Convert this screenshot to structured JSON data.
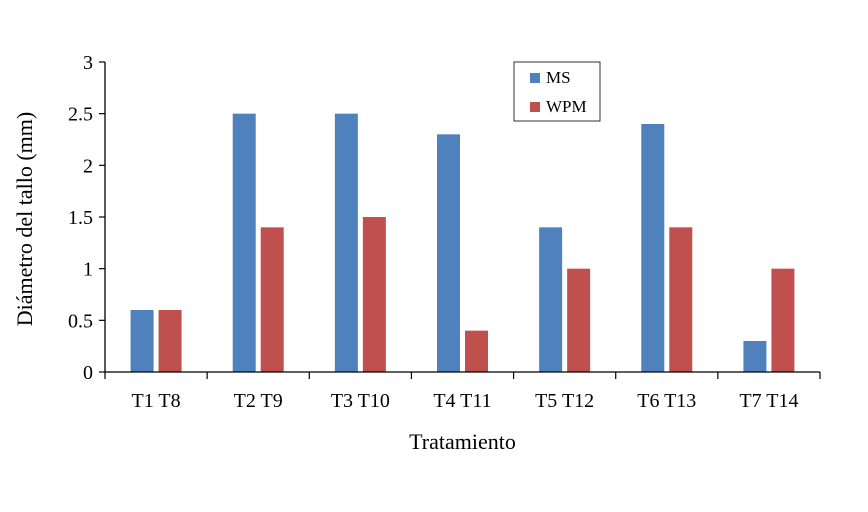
{
  "chart_data": {
    "type": "bar",
    "categories": [
      "T1 T8",
      "T2 T9",
      "T3 T10",
      "T4 T11",
      "T5 T12",
      "T6 T13",
      "T7 T14"
    ],
    "series": [
      {
        "name": "MS",
        "color": "#4f81bd",
        "values": [
          0.6,
          2.5,
          2.5,
          2.3,
          1.4,
          2.4,
          0.3
        ]
      },
      {
        "name": "WPM",
        "color": "#c0504d",
        "values": [
          0.6,
          1.4,
          1.5,
          0.4,
          1.0,
          1.4,
          1.0
        ]
      }
    ],
    "title": "",
    "xlabel": "Tratamiento",
    "ylabel": "Diámetro del tallo (mm)",
    "ylim": [
      0,
      3
    ],
    "yticks": [
      0,
      0.5,
      1,
      1.5,
      2,
      2.5,
      3
    ],
    "ytick_labels": [
      "0",
      "0.5",
      "1",
      "1.5",
      "2",
      "2.5",
      "3"
    ],
    "grid": false,
    "legend_position": "top-right"
  }
}
